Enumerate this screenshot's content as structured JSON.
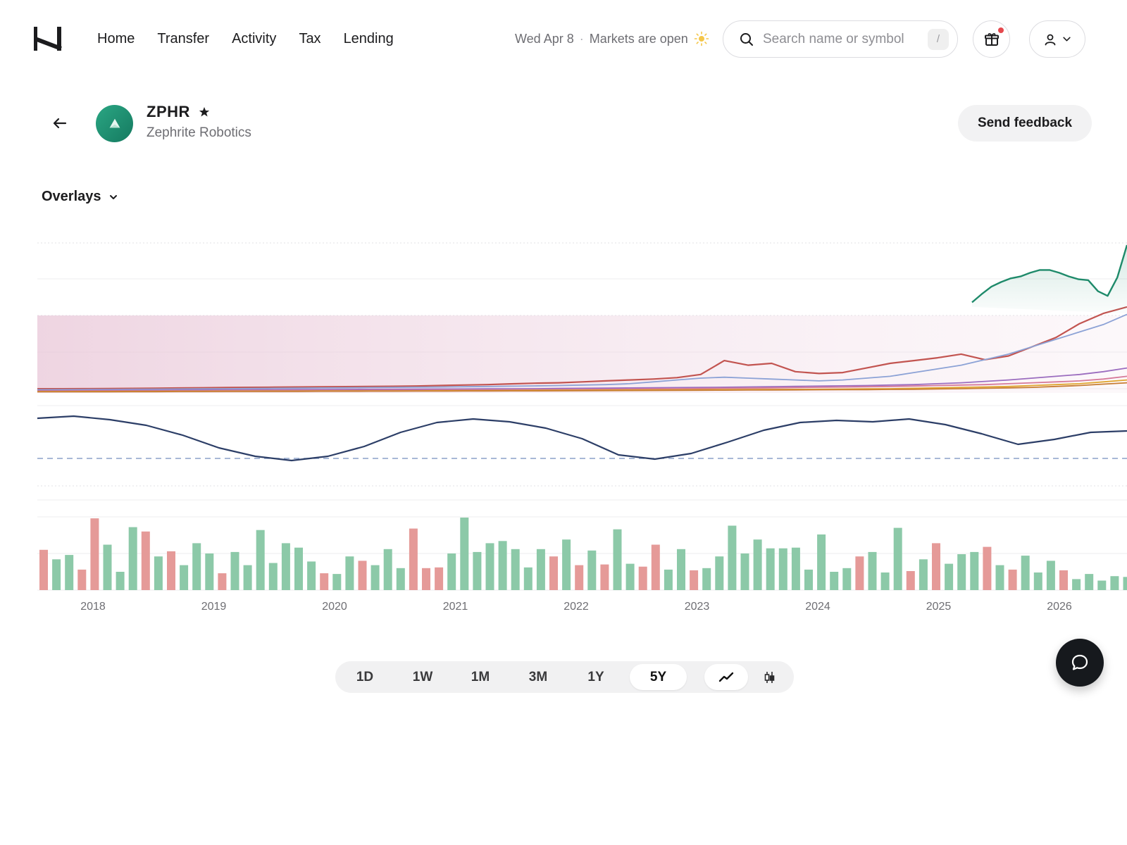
{
  "nav": {
    "logo_icon": "h-logo-icon",
    "links": [
      "Home",
      "Transfer",
      "Activity",
      "Tax",
      "Lending"
    ]
  },
  "market": {
    "date": "Wed Apr 8",
    "separator": "·",
    "status": "Markets are open",
    "status_icon": "sun-icon"
  },
  "search": {
    "placeholder": "Search name or symbol",
    "value": "",
    "shortcut": "/"
  },
  "header_actions": {
    "gift_icon": "gift-icon",
    "has_notification": true,
    "user_icon": "user-icon"
  },
  "ticker": {
    "symbol": "ZPHR",
    "name": "Zephrite Robotics",
    "favorited": true
  },
  "actions": {
    "feedback_label": "Send feedback"
  },
  "overlays": {
    "label": "Overlays"
  },
  "timeframes": {
    "options": [
      "1D",
      "1W",
      "1M",
      "3M",
      "1Y",
      "5Y"
    ],
    "selected": "5Y"
  },
  "chart_types": {
    "options": [
      "line",
      "candlestick"
    ],
    "selected": "line"
  },
  "colors": {
    "up": "#8cc9a8",
    "down": "#e59a98",
    "price_line": "#1e8a6a",
    "oscillator_line": "#2c3e67",
    "accent_brand": "#1c1c1e"
  },
  "chart_data": {
    "type": "line",
    "x_ticks": [
      "2018",
      "2019",
      "2020",
      "2021",
      "2022",
      "2023",
      "2024",
      "2025",
      "2026"
    ],
    "overlay_series": [
      {
        "color": "#c25450",
        "values": [
          0.045,
          0.045,
          0.046,
          0.047,
          0.049,
          0.051,
          0.053,
          0.056,
          0.058,
          0.06,
          0.062,
          0.064,
          0.066,
          0.068,
          0.07,
          0.072,
          0.075,
          0.08,
          0.085,
          0.09,
          0.098,
          0.105,
          0.11,
          0.12,
          0.13,
          0.14,
          0.15,
          0.165,
          0.2,
          0.35,
          0.3,
          0.32,
          0.23,
          0.21,
          0.22,
          0.27,
          0.32,
          0.35,
          0.38,
          0.42,
          0.36,
          0.4,
          0.5,
          0.6,
          0.75,
          0.86,
          0.93
        ]
      },
      {
        "color": "#8ca2d6",
        "values": [
          0.035,
          0.036,
          0.037,
          0.038,
          0.04,
          0.041,
          0.043,
          0.044,
          0.046,
          0.048,
          0.05,
          0.052,
          0.054,
          0.056,
          0.058,
          0.06,
          0.062,
          0.064,
          0.067,
          0.07,
          0.073,
          0.076,
          0.08,
          0.085,
          0.09,
          0.1,
          0.12,
          0.14,
          0.16,
          0.17,
          0.16,
          0.15,
          0.14,
          0.13,
          0.14,
          0.16,
          0.18,
          0.22,
          0.26,
          0.3,
          0.36,
          0.42,
          0.5,
          0.58,
          0.66,
          0.74,
          0.85
        ]
      },
      {
        "color": "#9b6dbf",
        "values": [
          0.025,
          0.026,
          0.027,
          0.028,
          0.029,
          0.03,
          0.031,
          0.032,
          0.033,
          0.034,
          0.035,
          0.036,
          0.037,
          0.038,
          0.039,
          0.04,
          0.041,
          0.042,
          0.043,
          0.044,
          0.045,
          0.046,
          0.048,
          0.05,
          0.052,
          0.054,
          0.056,
          0.058,
          0.06,
          0.062,
          0.065,
          0.068,
          0.071,
          0.074,
          0.077,
          0.08,
          0.085,
          0.09,
          0.1,
          0.11,
          0.125,
          0.14,
          0.16,
          0.18,
          0.2,
          0.23,
          0.27
        ]
      },
      {
        "color": "#d67a9a",
        "values": [
          0.02,
          0.02,
          0.021,
          0.021,
          0.022,
          0.022,
          0.023,
          0.023,
          0.024,
          0.025,
          0.025,
          0.026,
          0.027,
          0.027,
          0.028,
          0.029,
          0.03,
          0.031,
          0.032,
          0.033,
          0.034,
          0.035,
          0.036,
          0.038,
          0.04,
          0.042,
          0.044,
          0.046,
          0.048,
          0.05,
          0.052,
          0.055,
          0.058,
          0.061,
          0.064,
          0.067,
          0.07,
          0.075,
          0.08,
          0.085,
          0.09,
          0.1,
          0.11,
          0.12,
          0.13,
          0.15,
          0.18
        ]
      },
      {
        "color": "#e0a630",
        "values": [
          0.015,
          0.015,
          0.016,
          0.016,
          0.017,
          0.017,
          0.018,
          0.018,
          0.019,
          0.019,
          0.02,
          0.02,
          0.021,
          0.021,
          0.022,
          0.022,
          0.023,
          0.024,
          0.025,
          0.026,
          0.027,
          0.028,
          0.029,
          0.03,
          0.031,
          0.032,
          0.033,
          0.034,
          0.035,
          0.036,
          0.037,
          0.038,
          0.039,
          0.04,
          0.042,
          0.044,
          0.046,
          0.05,
          0.055,
          0.06,
          0.065,
          0.07,
          0.08,
          0.09,
          0.1,
          0.12,
          0.14
        ]
      },
      {
        "color": "#c77d34",
        "values": [
          0.012,
          0.012,
          0.013,
          0.013,
          0.014,
          0.014,
          0.015,
          0.015,
          0.016,
          0.016,
          0.017,
          0.017,
          0.018,
          0.018,
          0.019,
          0.019,
          0.02,
          0.02,
          0.021,
          0.021,
          0.022,
          0.022,
          0.023,
          0.024,
          0.025,
          0.026,
          0.027,
          0.028,
          0.029,
          0.03,
          0.031,
          0.032,
          0.033,
          0.034,
          0.035,
          0.036,
          0.038,
          0.04,
          0.043,
          0.046,
          0.05,
          0.055,
          0.06,
          0.07,
          0.08,
          0.095,
          0.11
        ]
      }
    ],
    "price_series": {
      "color": "#1e8a6a",
      "values": [
        0.98,
        1.07,
        1.15,
        1.2,
        1.24,
        1.26,
        1.3,
        1.33,
        1.33,
        1.3,
        1.26,
        1.23,
        1.22,
        1.1,
        1.05,
        1.25,
        1.6
      ]
    },
    "oscillator": {
      "color": "#2c3e67",
      "values": [
        0.82,
        0.85,
        0.8,
        0.72,
        0.58,
        0.4,
        0.28,
        0.22,
        0.28,
        0.42,
        0.62,
        0.76,
        0.81,
        0.77,
        0.68,
        0.53,
        0.3,
        0.24,
        0.32,
        0.48,
        0.65,
        0.76,
        0.79,
        0.77,
        0.81,
        0.73,
        0.6,
        0.45,
        0.52,
        0.62,
        0.64
      ],
      "baseline": 0.3
    },
    "volume": {
      "values": [
        0.55,
        0.42,
        0.48,
        0.28,
        0.98,
        0.62,
        0.25,
        0.86,
        0.8,
        0.46,
        0.53,
        0.34,
        0.64,
        0.5,
        0.23,
        0.52,
        0.34,
        0.82,
        0.37,
        0.64,
        0.58,
        0.39,
        0.23,
        0.22,
        0.46,
        0.4,
        0.34,
        0.56,
        0.3,
        0.84,
        0.3,
        0.31,
        0.5,
        0.99,
        0.52,
        0.64,
        0.67,
        0.56,
        0.31,
        0.56,
        0.46,
        0.69,
        0.34,
        0.54,
        0.35,
        0.83,
        0.36,
        0.32,
        0.62,
        0.28,
        0.56,
        0.27,
        0.3,
        0.46,
        0.88,
        0.5,
        0.69,
        0.57,
        0.57,
        0.58,
        0.28,
        0.76,
        0.25,
        0.3,
        0.46,
        0.52,
        0.24,
        0.85,
        0.26,
        0.42,
        0.64,
        0.36,
        0.49,
        0.52,
        0.59,
        0.34,
        0.28,
        0.47,
        0.24,
        0.4,
        0.27,
        0.15,
        0.22,
        0.13,
        0.19,
        0.18,
        0.14
      ],
      "direction": [
        "down",
        "up",
        "up",
        "down",
        "down",
        "up",
        "up",
        "up",
        "down",
        "up",
        "down",
        "up",
        "up",
        "up",
        "down",
        "up",
        "up",
        "up",
        "up",
        "up",
        "up",
        "up",
        "down",
        "up",
        "up",
        "down",
        "up",
        "up",
        "up",
        "down",
        "down",
        "down",
        "up",
        "up",
        "up",
        "up",
        "up",
        "up",
        "up",
        "up",
        "down",
        "up",
        "down",
        "up",
        "down",
        "up",
        "up",
        "down",
        "down",
        "up",
        "up",
        "down",
        "up",
        "up",
        "up",
        "up",
        "up",
        "up",
        "up",
        "up",
        "up",
        "up",
        "up",
        "up",
        "down",
        "up",
        "up",
        "up",
        "down",
        "up",
        "down",
        "up",
        "up",
        "up",
        "down",
        "up",
        "down",
        "up",
        "up",
        "up",
        "down",
        "up",
        "up",
        "up",
        "up",
        "up",
        "down"
      ]
    }
  }
}
